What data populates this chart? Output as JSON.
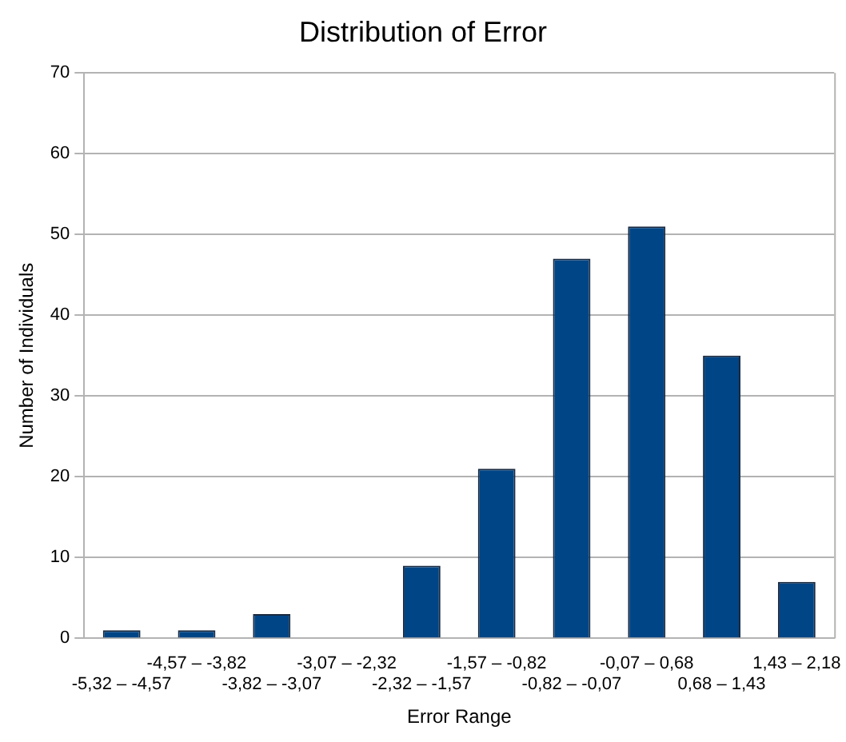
{
  "chart_data": {
    "type": "bar",
    "title": "Distribution of Error",
    "xlabel": "Error Range",
    "ylabel": "Number of Individuals",
    "categories": [
      "-5,32 – -4,57",
      "-4,57 – -3,82",
      "-3,82 – -3,07",
      "-3,07 – -2,32",
      "-2,32 – -1,57",
      "-1,57 – -0,82",
      "-0,82 – -0,07",
      "-0,07 – 0,68",
      "0,68 – 1,43",
      "1,43 – 2,18"
    ],
    "values": [
      1,
      1,
      3,
      0,
      9,
      21,
      47,
      51,
      35,
      7
    ],
    "color": "#004586",
    "ylim": [
      0,
      70
    ],
    "yticks": [
      0,
      10,
      20,
      30,
      40,
      50,
      60,
      70
    ],
    "grid": "y",
    "legend": false
  }
}
